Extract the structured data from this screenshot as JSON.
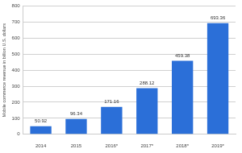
{
  "chart_data": {
    "type": "bar",
    "y_label": "Mobile commerce revenue in billion U.S. dollars",
    "categories": [
      "2014",
      "2015",
      "2016*",
      "2017*",
      "2018*",
      "2019*"
    ],
    "values": [
      50.92,
      96.34,
      171.16,
      288.12,
      459.38,
      693.36
    ],
    "color": "#2b6fd8",
    "ylim": [
      0,
      800
    ],
    "yticks": [
      0,
      100,
      200,
      300,
      400,
      500,
      600,
      700,
      800
    ],
    "grid": true,
    "data_labels": true
  }
}
